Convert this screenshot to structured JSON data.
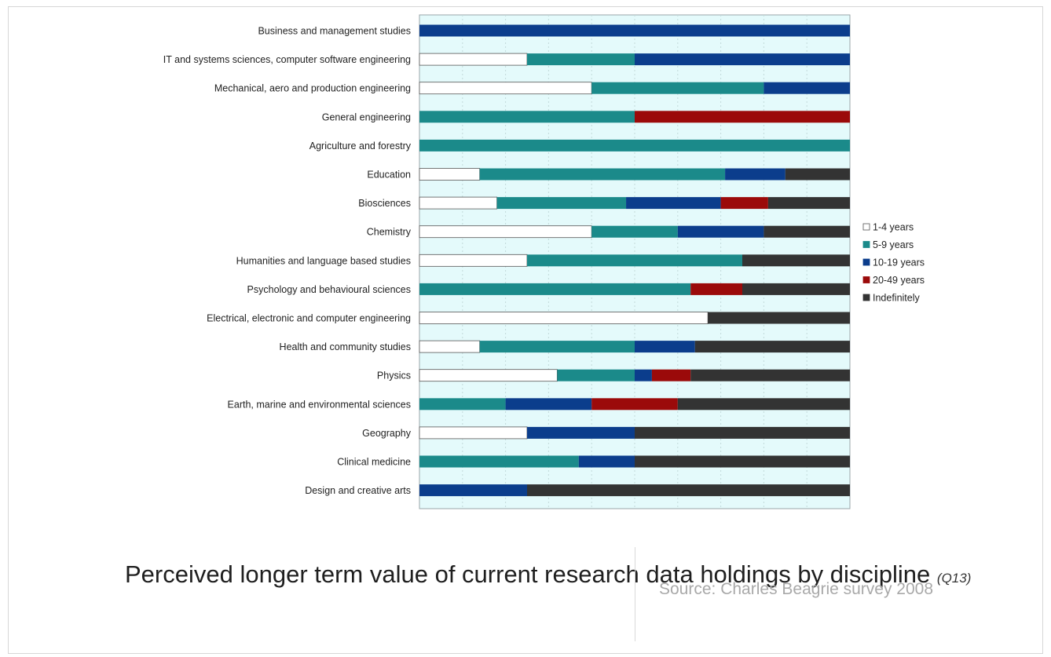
{
  "chart_data": {
    "type": "bar",
    "orientation": "horizontal",
    "stacked": "100%",
    "title": "Perceived longer term value of current research data holdings by discipline",
    "title_note": "(Q13)",
    "source": "Source: Charles Beagrie survey 2008",
    "legend_position": "right",
    "grid": true,
    "xlim": [
      0,
      100
    ],
    "categories": [
      "Business and management studies",
      "IT and systems sciences, computer software engineering",
      "Mechanical, aero and production engineering",
      "General engineering",
      "Agriculture and forestry",
      "Education",
      "Biosciences",
      "Chemistry",
      "Humanities and language based studies",
      "Psychology and behavioural sciences",
      "Electrical, electronic and computer engineering",
      "Health and community studies",
      "Physics",
      "Earth, marine and environmental sciences",
      "Geography",
      "Clinical medicine",
      "Design and creative arts"
    ],
    "series": [
      {
        "name": "1-4 years",
        "color": "#ffffff",
        "values": [
          0,
          25,
          40,
          0,
          0,
          14,
          18,
          40,
          25,
          0,
          67,
          14,
          32,
          0,
          25,
          0,
          0
        ]
      },
      {
        "name": "5-9 years",
        "color": "#1b8a8a",
        "values": [
          0,
          25,
          40,
          50,
          100,
          57,
          30,
          20,
          50,
          63,
          0,
          36,
          18,
          20,
          0,
          37,
          0
        ]
      },
      {
        "name": "10-19 years",
        "color": "#0b3d8c",
        "values": [
          100,
          50,
          20,
          0,
          0,
          14,
          22,
          20,
          0,
          0,
          0,
          14,
          4,
          20,
          25,
          13,
          25
        ]
      },
      {
        "name": "20-49 years",
        "color": "#9b0a0a",
        "values": [
          0,
          0,
          0,
          50,
          0,
          0,
          11,
          0,
          0,
          12,
          0,
          0,
          9,
          20,
          0,
          0,
          0
        ]
      },
      {
        "name": "Indefinitely",
        "color": "#333333",
        "values": [
          0,
          0,
          0,
          0,
          0,
          15,
          19,
          20,
          25,
          25,
          33,
          36,
          37,
          40,
          50,
          50,
          75
        ]
      }
    ]
  }
}
